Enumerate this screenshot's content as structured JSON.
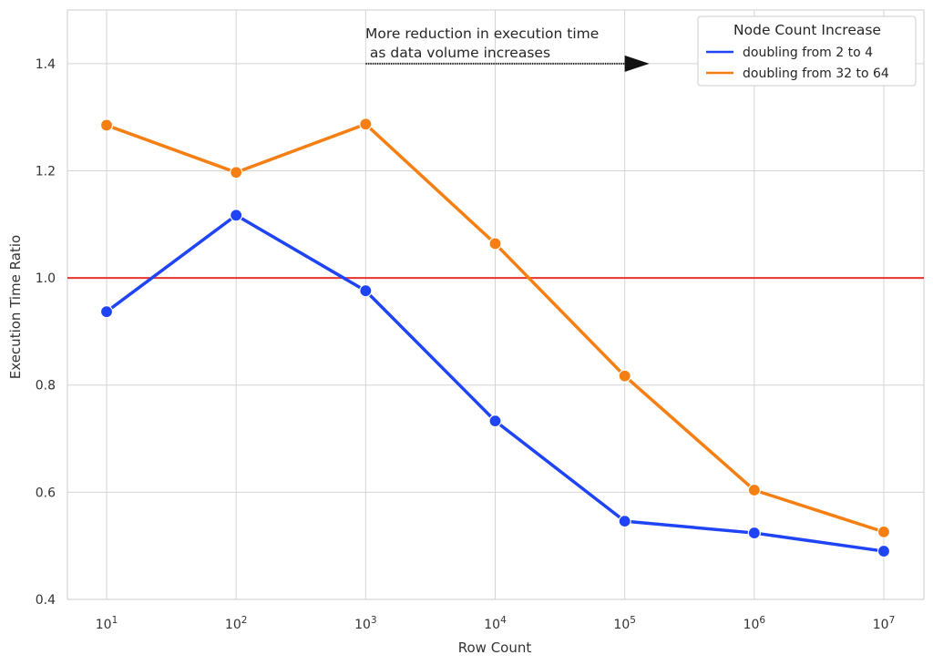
{
  "chart_data": {
    "type": "line",
    "xlabel": "Row Count",
    "ylabel": "Execution Time Ratio",
    "x_scale": "log",
    "x": [
      10,
      100,
      1000,
      10000,
      100000,
      1000000,
      10000000
    ],
    "x_tick_labels": [
      {
        "base": "10",
        "exp": "1"
      },
      {
        "base": "10",
        "exp": "2"
      },
      {
        "base": "10",
        "exp": "3"
      },
      {
        "base": "10",
        "exp": "4"
      },
      {
        "base": "10",
        "exp": "5"
      },
      {
        "base": "10",
        "exp": "6"
      },
      {
        "base": "10",
        "exp": "7"
      }
    ],
    "ylim": [
      0.4,
      1.5
    ],
    "y_ticks": [
      "0.4",
      "0.6",
      "0.8",
      "1.0",
      "1.2",
      "1.4"
    ],
    "grid": true,
    "series": [
      {
        "name": "doubling from 2 to 4",
        "color": "#1f44f5",
        "values": [
          0.937,
          1.117,
          0.976,
          0.733,
          0.546,
          0.524,
          0.49
        ]
      },
      {
        "name": "doubling from 32 to 64",
        "color": "#f57f12",
        "values": [
          1.285,
          1.197,
          1.287,
          1.064,
          0.817,
          0.604,
          0.526
        ]
      }
    ],
    "reference_line": {
      "y": 1.0,
      "color": "#e8322c"
    },
    "annotation": {
      "lines": [
        "More reduction in execution time",
        " as data volume increases"
      ],
      "arrow_from_x": 1000,
      "arrow_to_x": 100000,
      "arrow_y": 1.4
    },
    "legend": {
      "title": "Node Count Increase",
      "placement": "top-right"
    }
  }
}
